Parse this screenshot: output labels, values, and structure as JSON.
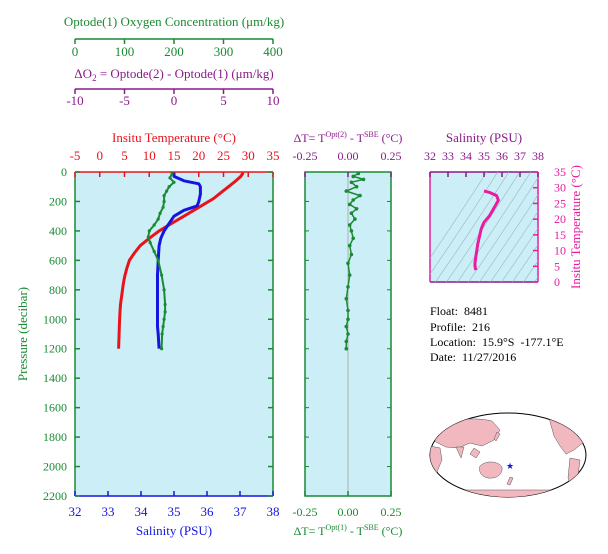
{
  "colors": {
    "temperature": "#e8141b",
    "salinity": "#1515e0",
    "oxygen": "#1a8a33",
    "dO2": "#8a1a8a",
    "ts": "#e81ca0",
    "panel_bg": "#cceef6",
    "land": "#f2b8c0",
    "ocean_map": "#ffffff"
  },
  "top_axes": {
    "oxygen": {
      "label": "Optode(1) Oxygen Concentration (μm/kg)",
      "ticks": [
        "0",
        "100",
        "200",
        "300",
        "400"
      ]
    },
    "dO2": {
      "label": "ΔO2 = Optode(2) - Optode(1)    (μm/kg)",
      "ticks": [
        "-10",
        "-5",
        "0",
        "5",
        "10"
      ]
    },
    "temperature": {
      "label": "Insitu Temperature (°C)",
      "ticks": [
        "-5",
        "0",
        "5",
        "10",
        "15",
        "20",
        "25",
        "30",
        "35"
      ]
    },
    "dT_top": {
      "label": "ΔT= T^Opt(2) - T^SBE (°C)",
      "ticks": [
        "-0.25",
        "0.00",
        "0.25"
      ]
    },
    "salinity_ts": {
      "label": "Salinity (PSU)",
      "ticks": [
        "32",
        "33",
        "34",
        "35",
        "36",
        "37",
        "38"
      ]
    }
  },
  "bottom_axes": {
    "salinity": {
      "label": "Salinity (PSU)",
      "ticks": [
        "32",
        "33",
        "34",
        "35",
        "36",
        "37",
        "38"
      ]
    },
    "dT_bottom": {
      "label": "ΔT= T^Opt(1) - T^SBE (°C)",
      "ticks": [
        "-0.25",
        "0.00",
        "0.25"
      ]
    }
  },
  "left_axis": {
    "label": "Pressure (decibar)",
    "ticks": [
      "0",
      "200",
      "400",
      "600",
      "800",
      "1000",
      "1200",
      "1400",
      "1600",
      "1800",
      "2000",
      "2200"
    ]
  },
  "ts_right_axis": {
    "label": "Insitu Temperature (°C)",
    "ticks": [
      "0",
      "5",
      "10",
      "15",
      "20",
      "25",
      "30",
      "35"
    ]
  },
  "info": {
    "float": "Float:  8481",
    "profile": "Profile:  216",
    "location": "Location:  15.9°S  -177.1°E",
    "date": "Date:  11/27/2016"
  },
  "chart_data": [
    {
      "type": "line",
      "xlabel": "Insitu Temperature (°C)",
      "ylabel": "Pressure (decibar)",
      "xlim": [
        -5,
        35
      ],
      "ylim": [
        2200,
        0
      ],
      "series": [
        {
          "x": [
            29.0,
            28.5,
            27.5,
            26.0,
            24.5,
            23.0,
            21.0,
            19.0,
            17.0,
            14.5,
            12.0,
            10.0,
            8.2,
            7.0,
            6.0,
            5.5,
            5.1,
            4.8,
            4.6,
            4.4,
            4.2,
            4.1,
            4.0,
            3.9,
            3.8
          ],
          "y": [
            5,
            30,
            60,
            100,
            140,
            180,
            220,
            260,
            300,
            350,
            400,
            450,
            500,
            550,
            600,
            650,
            700,
            750,
            800,
            850,
            900,
            950,
            1000,
            1100,
            1200
          ]
        }
      ]
    },
    {
      "type": "line",
      "xlabel": "Salinity (PSU)",
      "ylabel": "Pressure (decibar)",
      "xlim": [
        32,
        38
      ],
      "ylim": [
        2200,
        0
      ],
      "series": [
        {
          "x": [
            35.0,
            35.0,
            35.3,
            35.75,
            35.8,
            35.8,
            35.75,
            35.7,
            35.3,
            35.0,
            34.85,
            34.7,
            34.6,
            34.55,
            34.52,
            34.5,
            34.5,
            34.5,
            34.5,
            34.5,
            34.52,
            34.55
          ],
          "y": [
            5,
            30,
            60,
            80,
            100,
            150,
            200,
            230,
            260,
            300,
            350,
            400,
            450,
            500,
            600,
            700,
            800,
            900,
            1000,
            1050,
            1100,
            1200
          ]
        }
      ]
    },
    {
      "type": "scatter",
      "xlabel": "Optode(1) Oxygen Concentration (μm/kg)",
      "ylabel": "Pressure (decibar)",
      "xlim": [
        0,
        400
      ],
      "ylim": [
        2200,
        0
      ],
      "series": [
        {
          "x": [
            196,
            192,
            200,
            190,
            185,
            180,
            180,
            178,
            172,
            168,
            160,
            150,
            148,
            152,
            160,
            168,
            175,
            180,
            182,
            182,
            180,
            178,
            176,
            175
          ],
          "y": [
            10,
            40,
            70,
            100,
            130,
            160,
            200,
            240,
            280,
            320,
            360,
            400,
            440,
            480,
            540,
            600,
            700,
            800,
            900,
            950,
            1000,
            1050,
            1100,
            1200
          ]
        }
      ]
    },
    {
      "type": "scatter",
      "xlabel": "ΔT= T^Opt(2) - T^SBE (°C)",
      "ylabel": "Pressure (decibar)",
      "xlim": [
        -0.25,
        0.25
      ],
      "ylim": [
        2200,
        0
      ],
      "series": [
        {
          "x": [
            0.06,
            0.03,
            0.09,
            0.02,
            0.05,
            -0.01,
            0.07,
            0.03,
            0.01,
            0.05,
            0.02,
            0.04,
            0.01,
            0.02,
            0.03,
            0.01,
            0.02,
            0.0,
            0.01,
            0.0,
            -0.01,
            0.0,
            0.0,
            -0.01,
            0.0,
            -0.01,
            -0.01
          ],
          "y": [
            10,
            30,
            50,
            70,
            100,
            130,
            160,
            190,
            220,
            250,
            280,
            320,
            360,
            400,
            450,
            500,
            560,
            620,
            700,
            780,
            860,
            940,
            1000,
            1050,
            1100,
            1150,
            1200
          ]
        }
      ]
    },
    {
      "type": "line",
      "xlabel": "Salinity (PSU)",
      "ylabel": "Insitu Temperature (°C)",
      "xlim": [
        32,
        38
      ],
      "ylim": [
        0,
        35
      ],
      "series": [
        {
          "x": [
            35.0,
            35.3,
            35.7,
            35.8,
            35.6,
            35.3,
            35.0,
            34.85,
            34.75,
            34.65,
            34.6,
            34.55,
            34.52,
            34.5,
            34.5,
            34.52,
            34.55
          ],
          "y": [
            29.0,
            28.5,
            27.5,
            26.0,
            24.0,
            21.0,
            19.0,
            17.0,
            14.5,
            12.0,
            10.0,
            8.2,
            7.0,
            6.0,
            5.0,
            4.4,
            3.8
          ]
        }
      ]
    }
  ]
}
